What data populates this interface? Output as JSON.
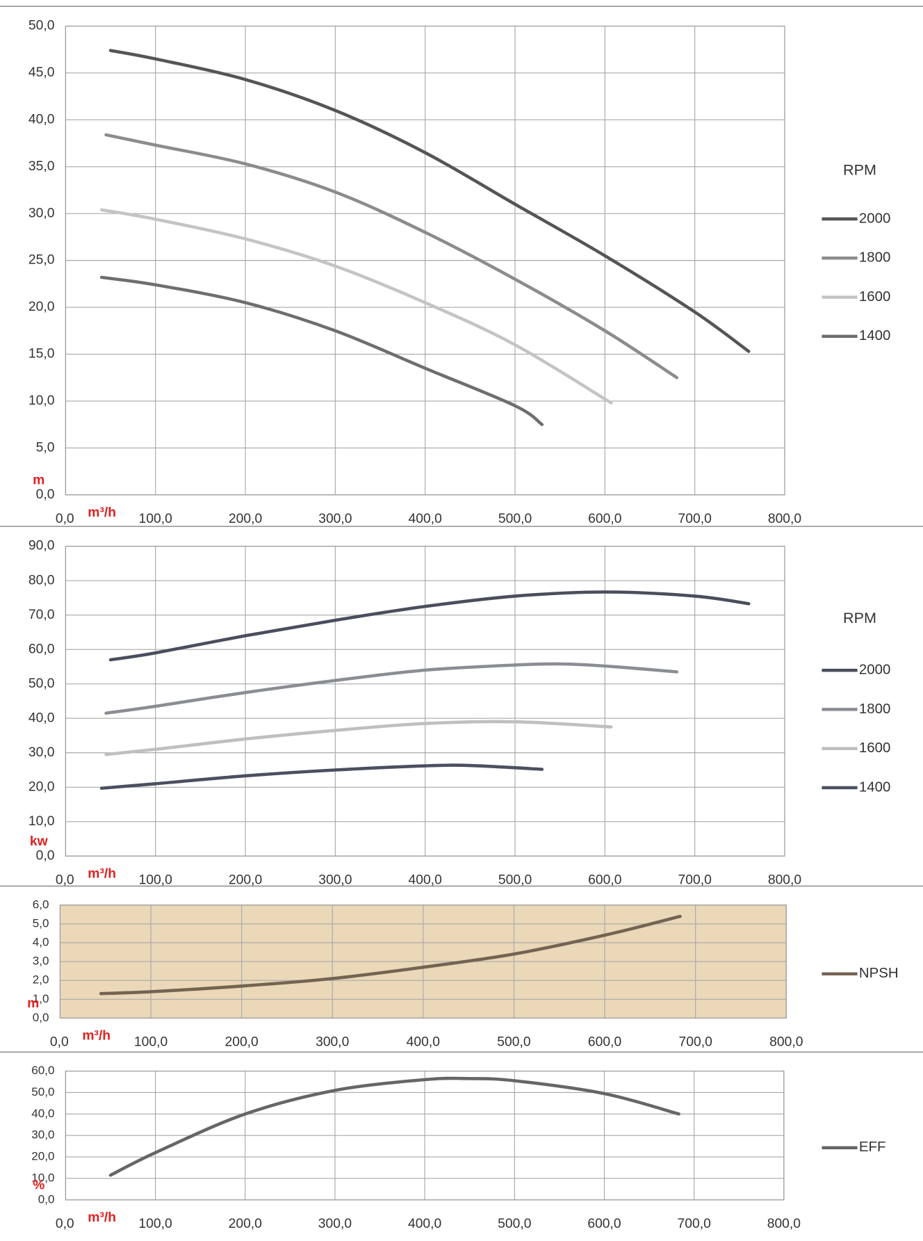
{
  "chart_data": [
    {
      "type": "line",
      "x_label": "m³/h",
      "y_label": "m",
      "legend_title": "RPM",
      "legend": "right",
      "grid": true,
      "xlim": [
        0,
        800
      ],
      "xticks": [
        {
          "value": 0,
          "label": "0,0"
        },
        {
          "value": 100,
          "label": "100,0"
        },
        {
          "value": 200,
          "label": "200,0"
        },
        {
          "value": 300,
          "label": "300,0"
        },
        {
          "value": 400,
          "label": "400,0"
        },
        {
          "value": 500,
          "label": "500,0"
        },
        {
          "value": 600,
          "label": "600,0"
        },
        {
          "value": 700,
          "label": "700,0"
        },
        {
          "value": 800,
          "label": "800,0"
        }
      ],
      "ylim": [
        0,
        50
      ],
      "yticks": [
        {
          "value": 0,
          "label": "0,0"
        },
        {
          "value": 5,
          "label": "5,0"
        },
        {
          "value": 10,
          "label": "10,0"
        },
        {
          "value": 15,
          "label": "15,0"
        },
        {
          "value": 20,
          "label": "20,0"
        },
        {
          "value": 25,
          "label": "25,0"
        },
        {
          "value": 30,
          "label": "30,0"
        },
        {
          "value": 35,
          "label": "35,0"
        },
        {
          "value": 40,
          "label": "40,0"
        },
        {
          "value": 45,
          "label": "45,0"
        },
        {
          "value": 50,
          "label": "50,0"
        }
      ],
      "series": [
        {
          "name": "2000",
          "color": "#555555",
          "x": [
            50,
            100,
            200,
            300,
            400,
            500,
            600,
            700,
            760
          ],
          "values": [
            47.4,
            46.5,
            44.3,
            41.0,
            36.5,
            31.0,
            25.5,
            19.5,
            15.3
          ]
        },
        {
          "name": "1800",
          "color": "#8c8c8c",
          "x": [
            45,
            100,
            200,
            300,
            400,
            500,
            600,
            680
          ],
          "values": [
            38.4,
            37.3,
            35.3,
            32.3,
            28.0,
            23.0,
            17.5,
            12.5
          ]
        },
        {
          "name": "1600",
          "color": "#c4c4c4",
          "x": [
            40,
            100,
            200,
            300,
            400,
            500,
            607
          ],
          "values": [
            30.4,
            29.4,
            27.3,
            24.4,
            20.5,
            16.0,
            9.8
          ]
        },
        {
          "name": "1400",
          "color": "#6e6e6e",
          "x": [
            40,
            100,
            200,
            300,
            400,
            500,
            530
          ],
          "values": [
            23.2,
            22.4,
            20.5,
            17.5,
            13.5,
            9.5,
            7.5
          ]
        }
      ]
    },
    {
      "type": "line",
      "x_label": "m³/h",
      "y_label": "kw",
      "legend_title": "RPM",
      "legend": "right",
      "grid": true,
      "xlim": [
        0,
        800
      ],
      "xticks": [
        {
          "value": 0,
          "label": "0,0"
        },
        {
          "value": 100,
          "label": "100,0"
        },
        {
          "value": 200,
          "label": "200,0"
        },
        {
          "value": 300,
          "label": "300,0"
        },
        {
          "value": 400,
          "label": "400,0"
        },
        {
          "value": 500,
          "label": "500,0"
        },
        {
          "value": 600,
          "label": "600,0"
        },
        {
          "value": 700,
          "label": "700,0"
        },
        {
          "value": 800,
          "label": "800,0"
        }
      ],
      "ylim": [
        0,
        90
      ],
      "yticks": [
        {
          "value": 0,
          "label": "0,0"
        },
        {
          "value": 10,
          "label": "10,0"
        },
        {
          "value": 20,
          "label": "20,0"
        },
        {
          "value": 30,
          "label": "30,0"
        },
        {
          "value": 40,
          "label": "40,0"
        },
        {
          "value": 50,
          "label": "50,0"
        },
        {
          "value": 60,
          "label": "60,0"
        },
        {
          "value": 70,
          "label": "70,0"
        },
        {
          "value": 80,
          "label": "80,0"
        },
        {
          "value": 90,
          "label": "90,0"
        }
      ],
      "series": [
        {
          "name": "2000",
          "color": "#4a4e5c",
          "x": [
            50,
            100,
            200,
            300,
            400,
            500,
            600,
            700,
            760
          ],
          "values": [
            57.0,
            59.0,
            64.0,
            68.5,
            72.5,
            75.5,
            76.7,
            75.5,
            73.3
          ]
        },
        {
          "name": "1800",
          "color": "#8a8d94",
          "x": [
            45,
            100,
            200,
            300,
            400,
            500,
            550,
            600,
            680
          ],
          "values": [
            41.5,
            43.5,
            47.5,
            51.0,
            54.0,
            55.5,
            55.8,
            55.2,
            53.5
          ]
        },
        {
          "name": "1600",
          "color": "#bfbfbf",
          "x": [
            45,
            100,
            200,
            300,
            400,
            500,
            607
          ],
          "values": [
            29.5,
            31.0,
            34.0,
            36.5,
            38.5,
            39.0,
            37.5
          ]
        },
        {
          "name": "1400",
          "color": "#4b5060",
          "x": [
            40,
            100,
            200,
            300,
            400,
            450,
            530
          ],
          "values": [
            19.7,
            21.0,
            23.3,
            25.0,
            26.2,
            26.3,
            25.2
          ]
        }
      ]
    },
    {
      "type": "line",
      "x_label": "m³/h",
      "y_label": "m",
      "legend": "right",
      "grid": true,
      "background": "#ead8b8",
      "xlim": [
        0,
        800
      ],
      "xticks": [
        {
          "value": 0,
          "label": "0,0"
        },
        {
          "value": 100,
          "label": "100,0"
        },
        {
          "value": 200,
          "label": "200,0"
        },
        {
          "value": 300,
          "label": "300,0"
        },
        {
          "value": 400,
          "label": "400,0"
        },
        {
          "value": 500,
          "label": "500,0"
        },
        {
          "value": 600,
          "label": "600,0"
        },
        {
          "value": 700,
          "label": "700,0"
        },
        {
          "value": 800,
          "label": "800,0"
        }
      ],
      "ylim": [
        0,
        6
      ],
      "yticks": [
        {
          "value": 0,
          "label": "0,0"
        },
        {
          "value": 1,
          "label": "1,0"
        },
        {
          "value": 2,
          "label": "2,0"
        },
        {
          "value": 3,
          "label": "3,0"
        },
        {
          "value": 4,
          "label": "4,0"
        },
        {
          "value": 5,
          "label": "5,0"
        },
        {
          "value": 6,
          "label": "6,0"
        }
      ],
      "series": [
        {
          "name": "NPSH",
          "color": "#736452",
          "x": [
            45,
            100,
            200,
            300,
            400,
            500,
            600,
            683
          ],
          "values": [
            1.3,
            1.4,
            1.7,
            2.1,
            2.7,
            3.4,
            4.4,
            5.4
          ]
        }
      ]
    },
    {
      "type": "line",
      "x_label": "m³/h",
      "y_label": "%",
      "legend": "right",
      "grid": true,
      "xlim": [
        0,
        800
      ],
      "xticks": [
        {
          "value": 0,
          "label": "0,0"
        },
        {
          "value": 100,
          "label": "100,0"
        },
        {
          "value": 200,
          "label": "200,0"
        },
        {
          "value": 300,
          "label": "300,0"
        },
        {
          "value": 400,
          "label": "400,0"
        },
        {
          "value": 500,
          "label": "500,0"
        },
        {
          "value": 600,
          "label": "600,0"
        },
        {
          "value": 700,
          "label": "700,0"
        },
        {
          "value": 800,
          "label": "800,0"
        }
      ],
      "ylim": [
        0,
        60
      ],
      "yticks": [
        {
          "value": 0,
          "label": "0,0"
        },
        {
          "value": 10,
          "label": "10,0"
        },
        {
          "value": 20,
          "label": "20,0"
        },
        {
          "value": 30,
          "label": "30,0"
        },
        {
          "value": 40,
          "label": "40,0"
        },
        {
          "value": 50,
          "label": "50,0"
        },
        {
          "value": 60,
          "label": "60,0"
        }
      ],
      "series": [
        {
          "name": "EFF",
          "color": "#666666",
          "x": [
            50,
            100,
            200,
            300,
            400,
            450,
            500,
            600,
            683
          ],
          "values": [
            11.5,
            22.0,
            40.0,
            51.0,
            56.0,
            56.5,
            55.5,
            49.5,
            40.0
          ]
        }
      ]
    }
  ]
}
